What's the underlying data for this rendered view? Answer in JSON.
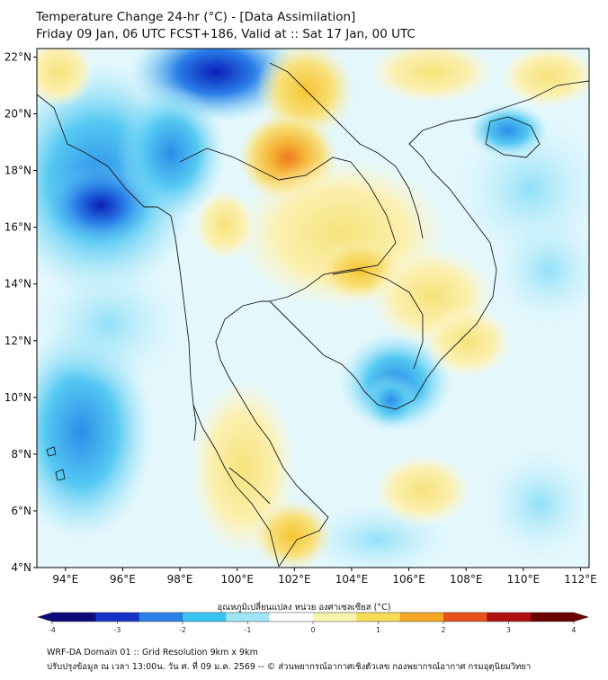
{
  "header": {
    "title": "Temperature Change 24-hr (°C) - [Data Assimilation]",
    "subtitle": "Friday 09 Jan, 06 UTC FCST+186, Valid at :: Sat 17 Jan, 00 UTC"
  },
  "map": {
    "lon_range": [
      93,
      112.3
    ],
    "lat_range": [
      4,
      22.3
    ],
    "lon_ticks": [
      "94°E",
      "96°E",
      "98°E",
      "100°E",
      "102°E",
      "104°E",
      "106°E",
      "108°E",
      "110°E",
      "112°E"
    ],
    "lon_tick_values": [
      94,
      96,
      98,
      100,
      102,
      104,
      106,
      108,
      110,
      112
    ],
    "lat_ticks": [
      "22°N",
      "20°N",
      "18°N",
      "16°N",
      "14°N",
      "12°N",
      "10°N",
      "8°N",
      "6°N",
      "4°N"
    ],
    "lat_tick_values": [
      22,
      20,
      18,
      16,
      14,
      12,
      10,
      8,
      6,
      4
    ]
  },
  "colorbar": {
    "title": "อุณหภูมิเปลี่ยนแปลง หน่วย องศาเซลเซียส (°C)",
    "min": -4,
    "max": 4,
    "tick_labels": [
      "-4",
      "-3",
      "-2",
      "-1",
      "0",
      "1",
      "2",
      "3",
      "4"
    ],
    "tick_values": [
      -4,
      -3,
      -2,
      -1,
      0,
      1,
      2,
      3,
      4
    ],
    "colors": [
      "#0a0a78",
      "#1432c8",
      "#2a7fe8",
      "#38c3f0",
      "#9fe6f8",
      "#ffffff",
      "#fbf3b0",
      "#f7dc55",
      "#f5a623",
      "#e8501c",
      "#b01010",
      "#6a0000"
    ]
  },
  "footer": {
    "line1": "WRF-DA Domain 01 :: Grid Resolution 9km x 9km",
    "line2": "ปรับปรุงข้อมูล ณ เวลา 13:00น. วัน ศ. ที่ 09 ม.ค. 2569 -- © ส่วนพยากรณ์อากาศเชิงตัวเลข กองพยากรณ์อากาศ กรมอุตุนิยมวิทยา"
  }
}
